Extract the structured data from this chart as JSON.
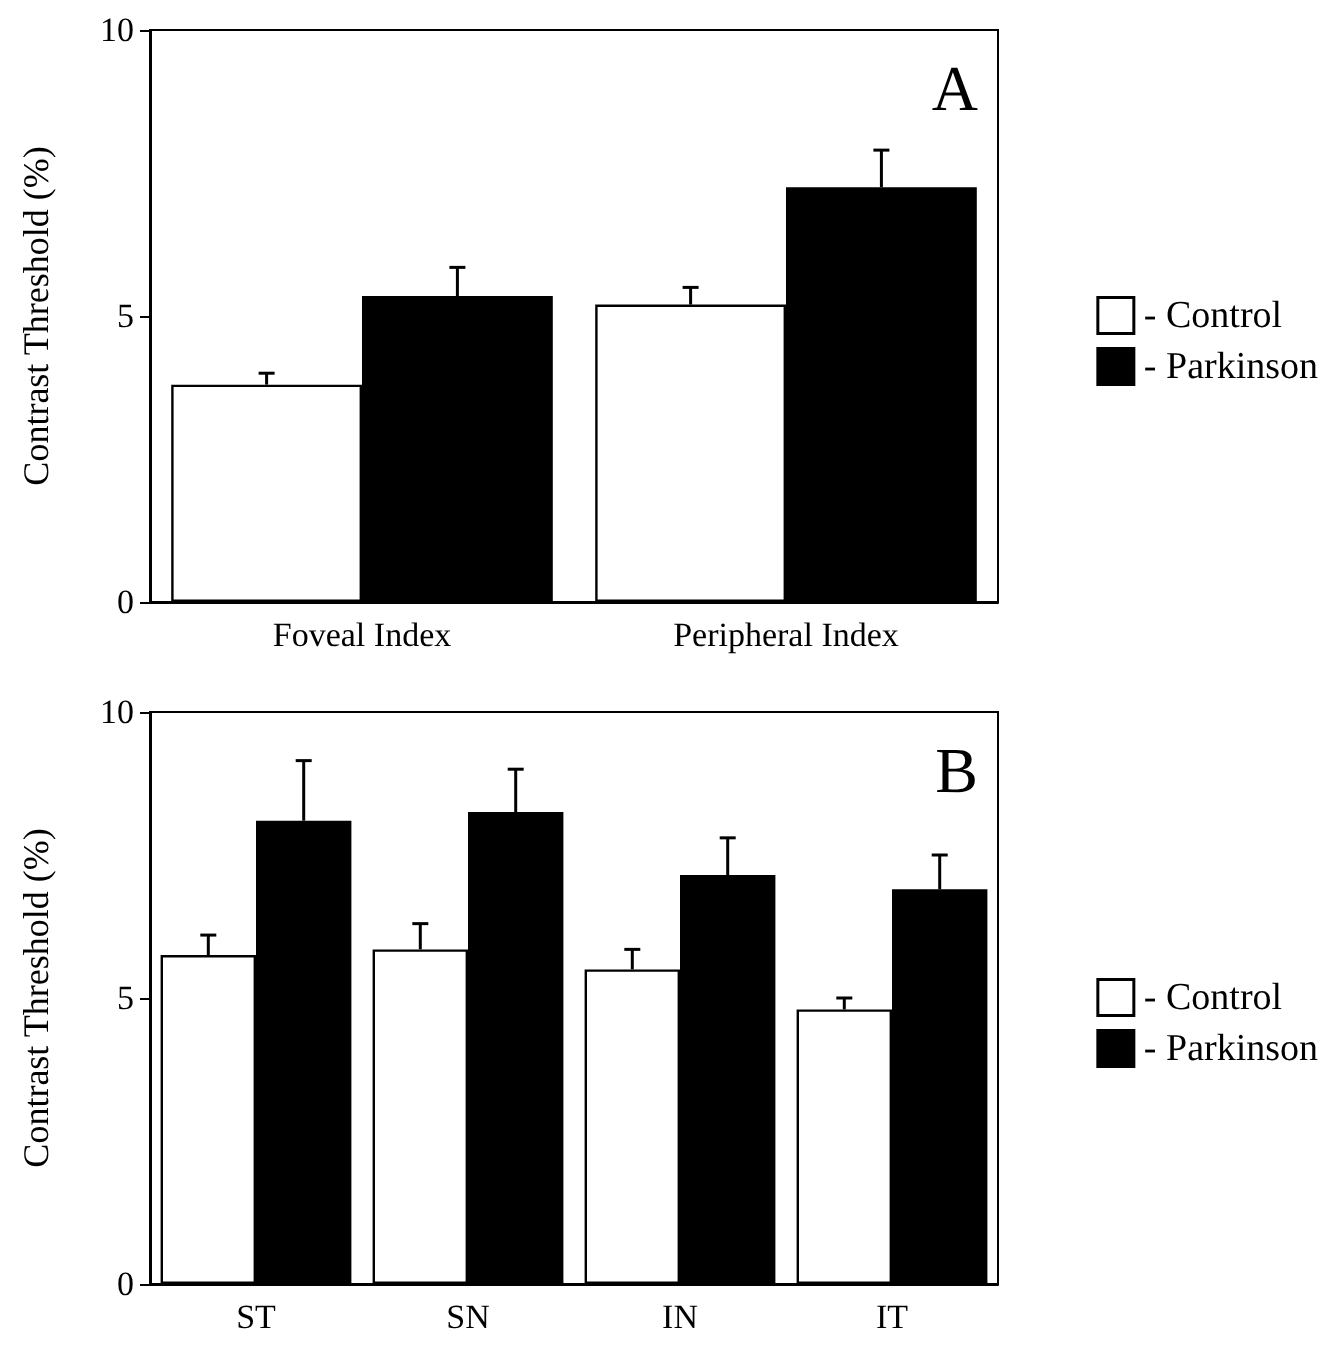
{
  "chart_data": [
    {
      "type": "bar",
      "ylabel": "Contrast Threshold (%)",
      "categories": [
        "Foveal Index",
        "Peripheral Index"
      ],
      "ylim": [
        0,
        10
      ],
      "yticks": [
        0,
        5,
        10
      ],
      "grid": false,
      "legend": "right",
      "annotations": [
        "A"
      ],
      "series": [
        {
          "name": "- Control",
          "color": "#ffffff",
          "values": [
            3.8,
            5.2
          ],
          "errors": [
            [
              3.8,
              4.0
            ],
            [
              5.2,
              5.5
            ]
          ]
        },
        {
          "name": "- Parkinson",
          "color": "#000000",
          "values": [
            5.35,
            7.25
          ],
          "errors": [
            [
              5.35,
              5.85
            ],
            [
              7.25,
              7.9
            ]
          ]
        }
      ]
    },
    {
      "type": "bar",
      "ylabel": "Contrast Threshold (%)",
      "categories": [
        "ST",
        "SN",
        "IN",
        "IT"
      ],
      "ylim": [
        0,
        10
      ],
      "yticks": [
        0,
        5,
        10
      ],
      "grid": false,
      "legend": "right",
      "annotations": [
        "B"
      ],
      "series": [
        {
          "name": "- Control",
          "color": "#ffffff",
          "values": [
            5.75,
            5.85,
            5.5,
            4.8
          ],
          "errors": [
            [
              5.75,
              6.1
            ],
            [
              5.85,
              6.3
            ],
            [
              5.5,
              5.85
            ],
            [
              4.8,
              5.0
            ]
          ]
        },
        {
          "name": "- Parkinson",
          "color": "#000000",
          "values": [
            8.1,
            8.25,
            7.15,
            6.9
          ],
          "errors": [
            [
              8.1,
              9.15
            ],
            [
              8.25,
              9.0
            ],
            [
              7.15,
              7.8
            ],
            [
              6.9,
              7.5
            ]
          ]
        }
      ]
    }
  ]
}
